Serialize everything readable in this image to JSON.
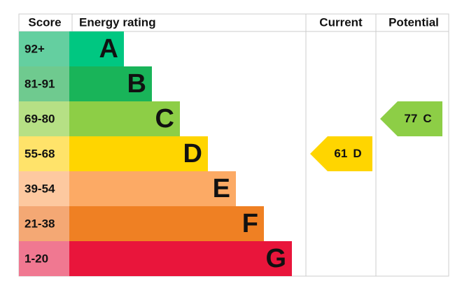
{
  "header": {
    "score": "Score",
    "rating": "Energy rating",
    "current": "Current",
    "potential": "Potential"
  },
  "bands": [
    {
      "score": "92+",
      "letter": "A",
      "color": "#00c781",
      "score_color": "#64cfa0"
    },
    {
      "score": "81-91",
      "letter": "B",
      "color": "#19b459",
      "score_color": "#6fca8f"
    },
    {
      "score": "69-80",
      "letter": "C",
      "color": "#8dce46",
      "score_color": "#b6e085"
    },
    {
      "score": "55-68",
      "letter": "D",
      "color": "#ffd500",
      "score_color": "#ffe36a"
    },
    {
      "score": "39-54",
      "letter": "E",
      "color": "#fcaa65",
      "score_color": "#fdc9a0"
    },
    {
      "score": "21-38",
      "letter": "F",
      "color": "#ef8023",
      "score_color": "#f4a874"
    },
    {
      "score": "1-20",
      "letter": "G",
      "color": "#e9153b",
      "score_color": "#f07891"
    }
  ],
  "current": {
    "value": 61,
    "letter": "D"
  },
  "potential": {
    "value": 77,
    "letter": "C"
  }
}
